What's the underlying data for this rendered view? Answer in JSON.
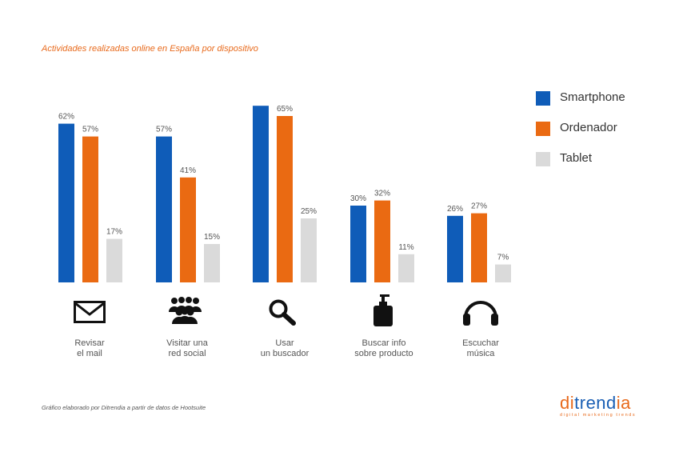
{
  "colors": {
    "smartphone": "#0f5cb8",
    "ordenador": "#ea6a12",
    "tablet": "#dadada",
    "title": "#e86a1c",
    "value_label": "#555555"
  },
  "title": "Actividades realizadas online en España por dispositivo",
  "footnote": "Gráfico elaborado por Ditrendia a partir de datos de Hootsuite",
  "brand": {
    "name_orange": "di",
    "name_blue": "trend",
    "name_rest": "ia",
    "tagline": "digital marketing trends"
  },
  "legend": [
    {
      "label": "Smartphone",
      "color": "#0f5cb8"
    },
    {
      "label": "Ordenador",
      "color": "#ea6a12"
    },
    {
      "label": "Tablet",
      "color": "#dadada"
    }
  ],
  "categories": [
    {
      "line1": "Revisar",
      "line2": "el mail",
      "icon": "mail-icon"
    },
    {
      "line1": "Visitar una",
      "line2": "red social",
      "icon": "people-icon"
    },
    {
      "line1": "Usar",
      "line2": "un buscador",
      "icon": "search-icon"
    },
    {
      "line1": "Buscar info",
      "line2": "sobre producto",
      "icon": "product-bottle-icon"
    },
    {
      "line1": "Escuchar",
      "line2": "música",
      "icon": "headphones-icon"
    }
  ],
  "chart_data": {
    "type": "bar",
    "title": "Actividades realizadas online en España por dispositivo",
    "categories": [
      "Revisar el mail",
      "Visitar una red social",
      "Usar un buscador",
      "Buscar info sobre producto",
      "Escuchar música"
    ],
    "series": [
      {
        "name": "Smartphone",
        "values": [
          62,
          57,
          69,
          30,
          26
        ],
        "labels": [
          "62%",
          "57%",
          "",
          "30%",
          "26%"
        ]
      },
      {
        "name": "Ordenador",
        "values": [
          57,
          41,
          65,
          32,
          27
        ],
        "labels": [
          "57%",
          "41%",
          "65%",
          "32%",
          "27%"
        ]
      },
      {
        "name": "Tablet",
        "values": [
          17,
          15,
          25,
          11,
          7
        ],
        "labels": [
          "17%",
          "15%",
          "25%",
          "11%",
          "7%"
        ]
      }
    ],
    "ylim": [
      0,
      100
    ],
    "grid": false,
    "legend_position": "right"
  }
}
